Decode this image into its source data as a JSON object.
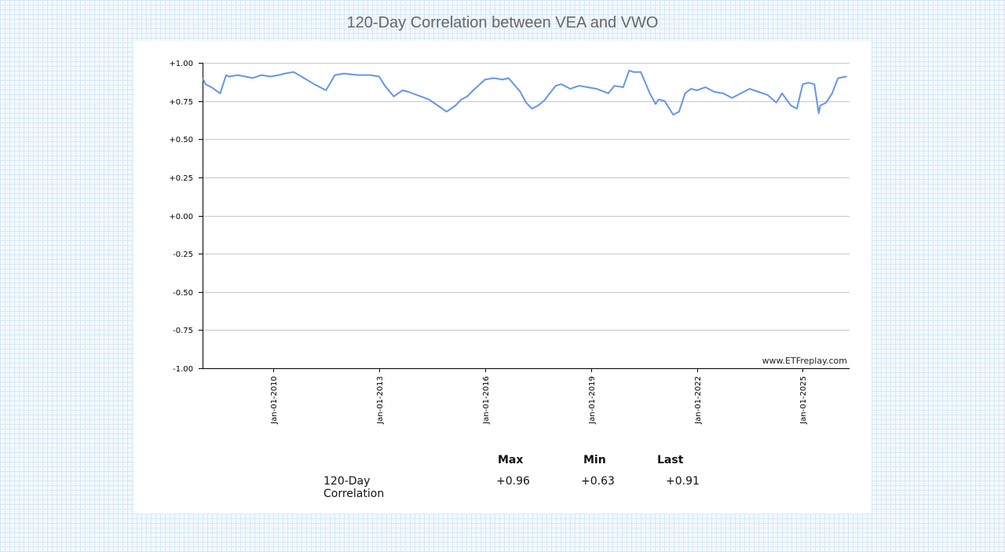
{
  "page": {
    "title": "120-Day Correlation between VEA and VWO",
    "watermark": "www.ETFreplay.com"
  },
  "chart_data": {
    "type": "line",
    "title": "120-Day Correlation between VEA and VWO",
    "xlabel": "",
    "ylabel": "",
    "ylim": [
      -1.0,
      1.0
    ],
    "xlim": [
      "2008-01-01",
      "2026-04-30"
    ],
    "y_ticks": [
      "+1.00",
      "+0.75",
      "+0.50",
      "+0.25",
      "+0.00",
      "-0.25",
      "-0.50",
      "-0.75",
      "-1.00"
    ],
    "y_tick_values": [
      1.0,
      0.75,
      0.5,
      0.25,
      0.0,
      -0.25,
      -0.5,
      -0.75,
      -1.0
    ],
    "x_ticks": [
      "Jan-01-2010",
      "Jan-01-2013",
      "Jan-01-2016",
      "Jan-01-2019",
      "Jan-01-2022",
      "Jan-01-2025"
    ],
    "x_tick_values": [
      "2010-01-01",
      "2013-01-01",
      "2016-01-01",
      "2019-01-01",
      "2022-01-01",
      "2025-01-01"
    ],
    "grid": true,
    "line_color": "#6495ed",
    "series": [
      {
        "x": [
          "2008-01-01",
          "2008-02-01",
          "2008-04-01",
          "2008-07-01",
          "2008-09-01",
          "2008-10-01",
          "2009-01-01",
          "2009-06-01",
          "2009-09-01",
          "2009-12-01",
          "2010-03-01",
          "2010-05-01",
          "2010-08-01",
          "2011-03-01",
          "2011-07-01",
          "2011-10-01",
          "2012-01-01",
          "2012-06-01",
          "2012-10-01",
          "2013-01-01",
          "2013-03-01",
          "2013-06-01",
          "2013-09-01",
          "2013-11-01",
          "2014-06-01",
          "2014-09-01",
          "2014-12-01",
          "2015-03-01",
          "2015-05-01",
          "2015-07-01",
          "2015-09-01",
          "2016-01-01",
          "2016-04-01",
          "2016-07-01",
          "2016-09-01",
          "2017-01-01",
          "2017-03-01",
          "2017-05-01",
          "2017-07-01",
          "2017-09-01",
          "2018-01-01",
          "2018-03-01",
          "2018-06-01",
          "2018-09-01",
          "2018-12-01",
          "2019-03-01",
          "2019-07-01",
          "2019-09-01",
          "2019-12-01",
          "2020-02-01",
          "2020-03-15",
          "2020-06-01",
          "2020-09-01",
          "2020-11-01",
          "2020-12-01",
          "2021-02-01",
          "2021-05-01",
          "2021-07-01",
          "2021-09-01",
          "2021-11-01",
          "2022-01-01",
          "2022-04-01",
          "2022-07-01",
          "2022-10-01",
          "2023-01-01",
          "2023-04-01",
          "2023-07-01",
          "2023-10-01",
          "2024-01-01",
          "2024-04-01",
          "2024-06-01",
          "2024-09-01",
          "2024-11-01",
          "2025-01-01",
          "2025-03-01",
          "2025-05-01",
          "2025-06-15",
          "2025-07-01",
          "2025-09-01",
          "2025-11-01",
          "2026-01-01",
          "2026-04-01"
        ],
        "y": [
          0.9,
          0.86,
          0.84,
          0.8,
          0.92,
          0.91,
          0.92,
          0.9,
          0.92,
          0.91,
          0.92,
          0.93,
          0.94,
          0.86,
          0.82,
          0.92,
          0.93,
          0.92,
          0.92,
          0.91,
          0.85,
          0.78,
          0.82,
          0.81,
          0.76,
          0.72,
          0.68,
          0.72,
          0.76,
          0.78,
          0.82,
          0.89,
          0.9,
          0.89,
          0.9,
          0.81,
          0.74,
          0.7,
          0.72,
          0.75,
          0.85,
          0.86,
          0.83,
          0.85,
          0.84,
          0.83,
          0.8,
          0.85,
          0.84,
          0.95,
          0.94,
          0.94,
          0.8,
          0.73,
          0.76,
          0.75,
          0.66,
          0.68,
          0.8,
          0.83,
          0.82,
          0.84,
          0.81,
          0.8,
          0.77,
          0.8,
          0.83,
          0.81,
          0.79,
          0.74,
          0.8,
          0.72,
          0.7,
          0.86,
          0.87,
          0.86,
          0.67,
          0.72,
          0.74,
          0.8,
          0.9,
          0.91
        ]
      }
    ]
  },
  "stats": {
    "headers": [
      "Max",
      "Min",
      "Last"
    ],
    "row_label": "120-Day Correlation",
    "values": [
      "+0.96",
      "+0.63",
      "+0.91"
    ]
  }
}
